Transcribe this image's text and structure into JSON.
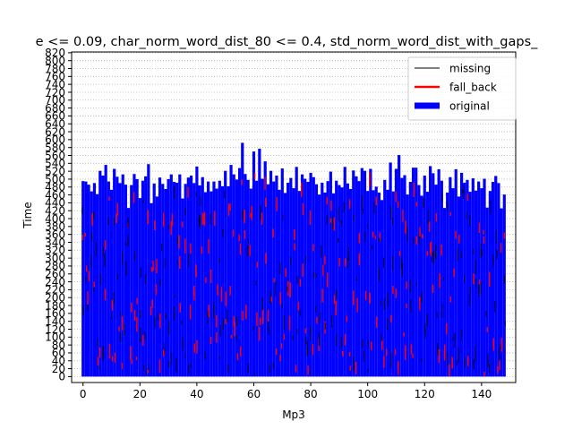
{
  "chart_data": {
    "type": "bar",
    "title": "e <= 0.09, char_norm_word_dist_80 <= 0.4, std_norm_word_dist_with_gaps_",
    "xlabel": "Mp3",
    "ylabel": "Time",
    "xlim": [
      -4,
      152
    ],
    "ylim": [
      -15,
      822
    ],
    "x_ticks": [
      0,
      20,
      40,
      60,
      80,
      100,
      120,
      140
    ],
    "y_ticks": [
      0,
      20,
      40,
      60,
      80,
      100,
      120,
      140,
      160,
      180,
      200,
      220,
      240,
      260,
      280,
      300,
      320,
      340,
      360,
      380,
      400,
      420,
      440,
      460,
      480,
      500,
      520,
      540,
      560,
      580,
      600,
      620,
      640,
      660,
      680,
      700,
      720,
      740,
      760,
      780,
      800,
      820
    ],
    "grid": "horizontal dotted",
    "legend_position": "top-right",
    "x": [
      0,
      1,
      2,
      3,
      4,
      5,
      6,
      7,
      8,
      9,
      10,
      11,
      12,
      13,
      14,
      15,
      16,
      17,
      18,
      19,
      20,
      21,
      22,
      23,
      24,
      25,
      26,
      27,
      28,
      29,
      30,
      31,
      32,
      33,
      34,
      35,
      36,
      37,
      38,
      39,
      40,
      41,
      42,
      43,
      44,
      45,
      46,
      47,
      48,
      49,
      50,
      51,
      52,
      53,
      54,
      55,
      56,
      57,
      58,
      59,
      60,
      61,
      62,
      63,
      64,
      65,
      66,
      67,
      68,
      69,
      70,
      71,
      72,
      73,
      74,
      75,
      76,
      77,
      78,
      79,
      80,
      81,
      82,
      83,
      84,
      85,
      86,
      87,
      88,
      89,
      90,
      91,
      92,
      93,
      94,
      95,
      96,
      97,
      98,
      99,
      100,
      101,
      102,
      103,
      104,
      105,
      106,
      107,
      108,
      109,
      110,
      111,
      112,
      113,
      114,
      115,
      116,
      117,
      118,
      119,
      120,
      121,
      122,
      123,
      124,
      125,
      126,
      127,
      128,
      129,
      130,
      131,
      132,
      133,
      134,
      135,
      136,
      137,
      138,
      139,
      140,
      141,
      142,
      143,
      144,
      145,
      146,
      147,
      148
    ],
    "series": [
      {
        "name": "missing",
        "color": "#000000",
        "style": "thin line"
      },
      {
        "name": "fall_back",
        "color": "#ff0000",
        "style": "medium line"
      },
      {
        "name": "original",
        "color": "#0000ff",
        "style": "thick line",
        "values": [
          495,
          494,
          486,
          469,
          490,
          462,
          521,
          509,
          536,
          494,
          473,
          526,
          506,
          490,
          512,
          486,
          427,
          485,
          513,
          500,
          452,
          496,
          507,
          538,
          439,
          489,
          456,
          504,
          488,
          475,
          500,
          512,
          493,
          491,
          512,
          451,
          488,
          504,
          509,
          490,
          532,
          484,
          505,
          467,
          494,
          469,
          494,
          476,
          496,
          482,
          521,
          482,
          536,
          512,
          499,
          528,
          592,
          513,
          498,
          476,
          570,
          496,
          577,
          501,
          545,
          487,
          521,
          494,
          509,
          473,
          527,
          465,
          491,
          503,
          477,
          531,
          470,
          512,
          501,
          493,
          516,
          505,
          487,
          461,
          491,
          466,
          495,
          519,
          464,
          496,
          485,
          479,
          531,
          489,
          475,
          522,
          507,
          495,
          528,
          521,
          470,
          526,
          472,
          481,
          466,
          447,
          498,
          473,
          542,
          469,
          526,
          561,
          503,
          510,
          461,
          493,
          529,
          529,
          485,
          458,
          509,
          468,
          533,
          515,
          486,
          525,
          496,
          427,
          466,
          505,
          477,
          525,
          456,
          516,
          491,
          498,
          468,
          502,
          471,
          494,
          477,
          501,
          428,
          470,
          493,
          508,
          490,
          426,
          461
        ]
      }
    ]
  }
}
